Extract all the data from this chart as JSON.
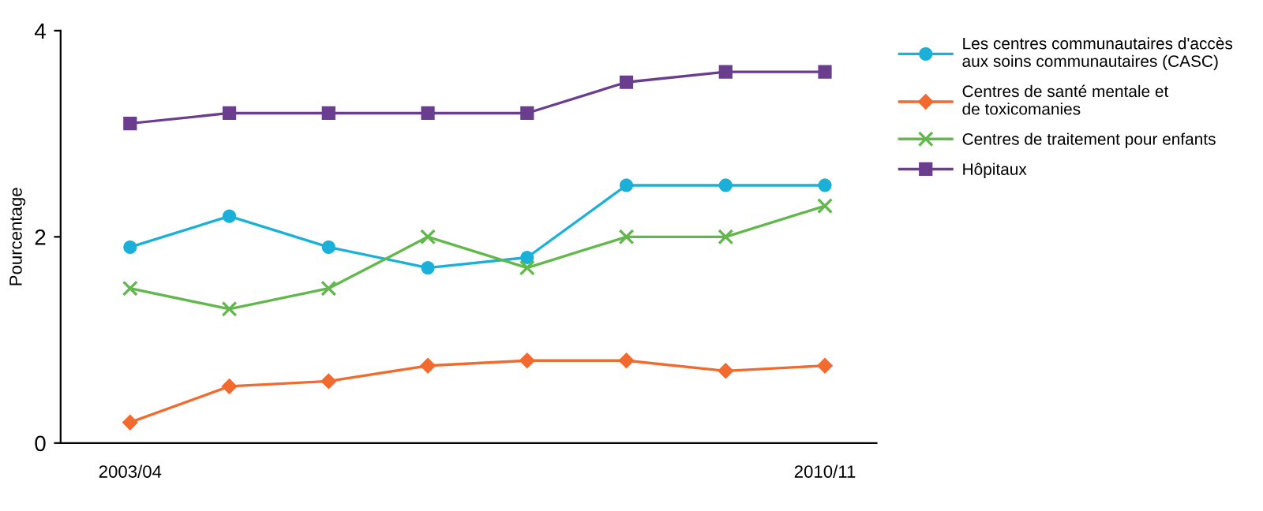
{
  "chart_data": {
    "type": "line",
    "ylabel": "Pourcentage",
    "categories": [
      "2003/04",
      null,
      null,
      null,
      null,
      null,
      null,
      "2010/11"
    ],
    "ylim": [
      0,
      4
    ],
    "yticks": [
      0,
      2,
      4
    ],
    "grid": false,
    "legend": "right",
    "line_style": "solid",
    "series": [
      {
        "name": "Les centres communautaires d'accès\naux soins communautaires (CASC)",
        "color": "#1ab0d8",
        "marker": "circle",
        "values": [
          1.9,
          2.2,
          1.9,
          1.7,
          1.8,
          2.5,
          2.5,
          2.5
        ]
      },
      {
        "name": "Centres de santé mentale et\nde toxicomanies",
        "color": "#f26a2e",
        "marker": "diamond",
        "values": [
          0.2,
          0.55,
          0.6,
          0.75,
          0.8,
          0.8,
          0.7,
          0.75
        ]
      },
      {
        "name": "Centres de traitement pour enfants",
        "color": "#62b84c",
        "marker": "cross",
        "values": [
          1.5,
          1.3,
          1.5,
          2.0,
          1.7,
          2.0,
          2.0,
          2.3
        ]
      },
      {
        "name": "Hôpitaux",
        "color": "#6a3d8f",
        "marker": "square",
        "values": [
          3.1,
          3.2,
          3.2,
          3.2,
          3.2,
          3.5,
          3.6,
          3.6
        ]
      }
    ]
  }
}
